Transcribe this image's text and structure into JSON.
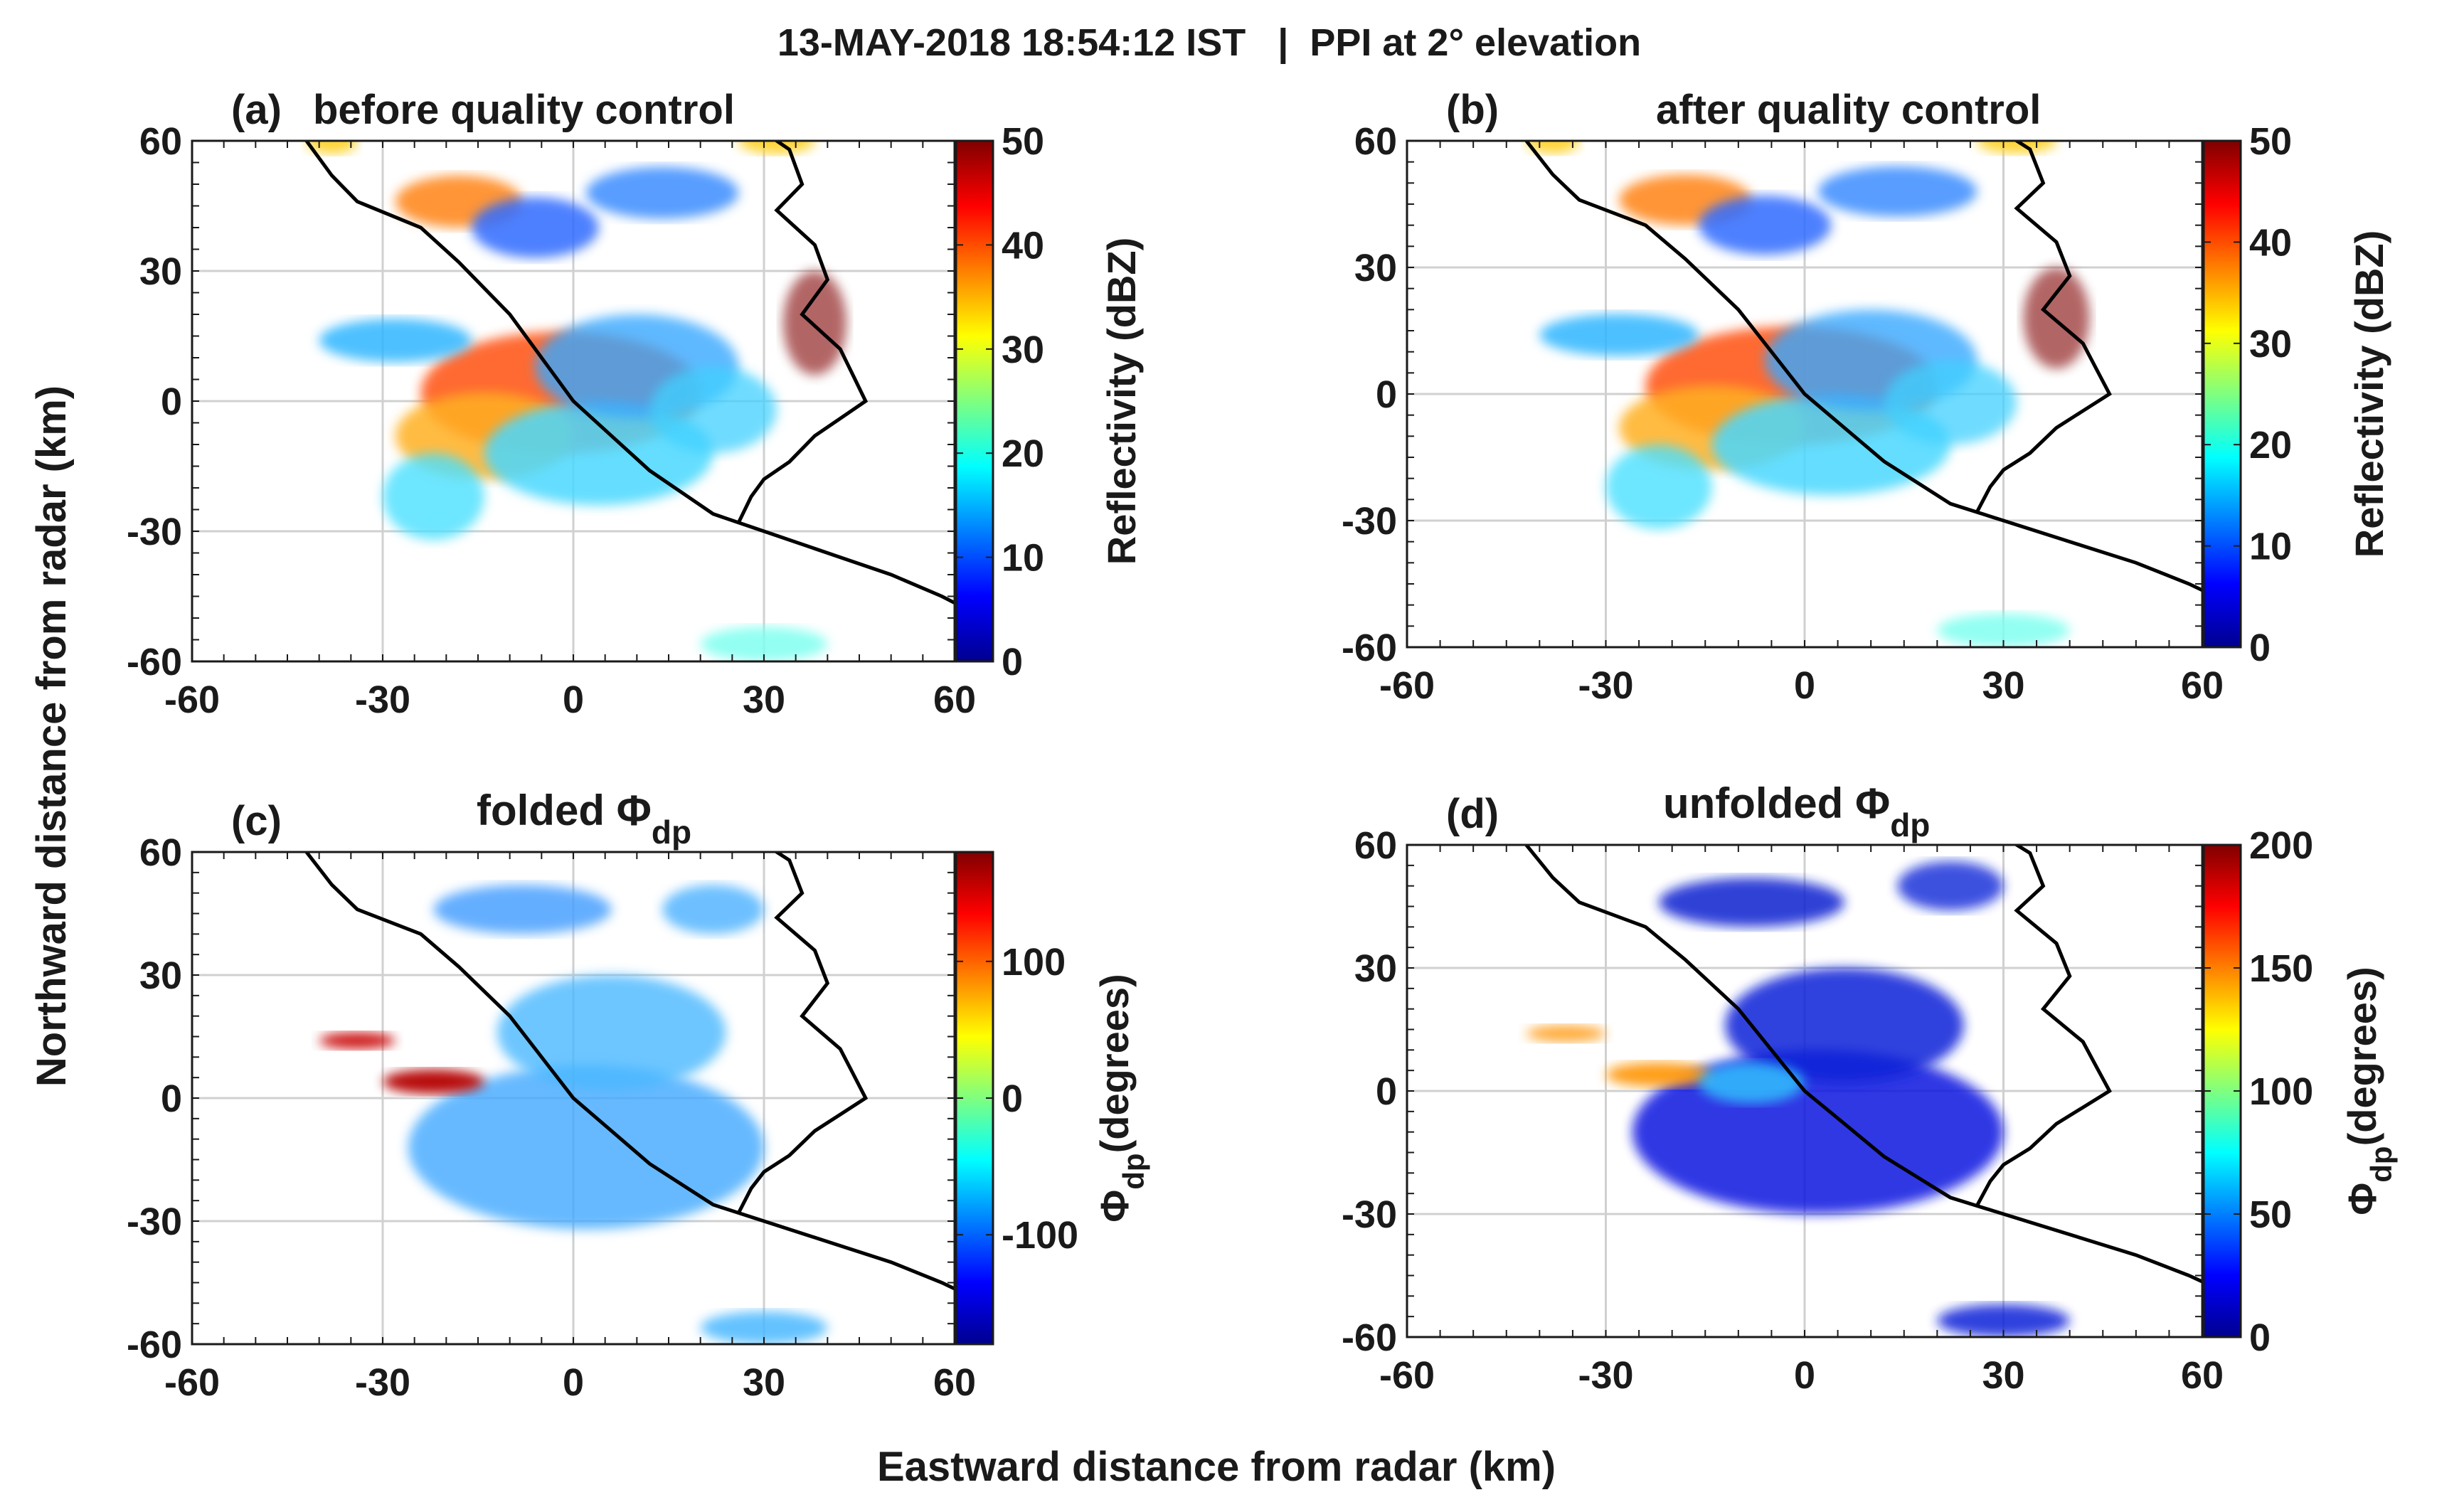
{
  "figure_title": "13-MAY-2018 18:54:12 IST   |  PPI at 2° elevation",
  "ylabel": "Northward distance from radar (km)",
  "xlabel": "Eastward distance from radar (km)",
  "colors": {
    "text": "#1a1a1a",
    "grid": "#d0d0d0",
    "coast": "#000000"
  },
  "chart_data": [
    {
      "type": "heatmap",
      "id": "a",
      "panel_label": "(a)",
      "title": "before quality control",
      "x_ticks": [
        "-60",
        "-30",
        "0",
        "30",
        "60"
      ],
      "y_ticks": [
        "60",
        "30",
        "0",
        "-30",
        "-60"
      ],
      "xlim": [
        -60,
        60
      ],
      "ylim": [
        -60,
        60
      ],
      "colorbar": {
        "label": "Reflectivity (dBZ)",
        "ticks": [
          "50",
          "40",
          "30",
          "20",
          "10",
          "0"
        ],
        "range": [
          0,
          50
        ]
      }
    },
    {
      "type": "heatmap",
      "id": "b",
      "panel_label": "(b)",
      "title": "after quality control",
      "x_ticks": [
        "-60",
        "-30",
        "0",
        "30",
        "60"
      ],
      "y_ticks": [
        "60",
        "30",
        "0",
        "-30",
        "-60"
      ],
      "xlim": [
        -60,
        60
      ],
      "ylim": [
        -60,
        60
      ],
      "colorbar": {
        "label": "Reflectivity (dBZ)",
        "ticks": [
          "50",
          "40",
          "30",
          "20",
          "10",
          "0"
        ],
        "range": [
          0,
          50
        ]
      }
    },
    {
      "type": "heatmap",
      "id": "c",
      "panel_label": "(c)",
      "title_main": "folded Φ",
      "title_sub": "dp",
      "x_ticks": [
        "-60",
        "-30",
        "0",
        "30",
        "60"
      ],
      "y_ticks": [
        "60",
        "30",
        "0",
        "-30",
        "-60"
      ],
      "xlim": [
        -60,
        60
      ],
      "ylim": [
        -60,
        60
      ],
      "colorbar": {
        "label_main": "Φ",
        "label_sub": "dp",
        "label_rest": "(degrees)",
        "ticks": [
          "100",
          "0",
          "-100"
        ],
        "range": [
          -180,
          180
        ]
      }
    },
    {
      "type": "heatmap",
      "id": "d",
      "panel_label": "(d)",
      "title_main": "unfolded Φ",
      "title_sub": "dp",
      "x_ticks": [
        "-60",
        "-30",
        "0",
        "30",
        "60"
      ],
      "y_ticks": [
        "60",
        "30",
        "0",
        "-30",
        "-60"
      ],
      "xlim": [
        -60,
        60
      ],
      "ylim": [
        -60,
        60
      ],
      "colorbar": {
        "label_main": "Φ",
        "label_sub": "dp",
        "label_rest": "(degrees)",
        "ticks": [
          "200",
          "150",
          "100",
          "50",
          "0"
        ],
        "range": [
          0,
          200
        ]
      }
    }
  ]
}
